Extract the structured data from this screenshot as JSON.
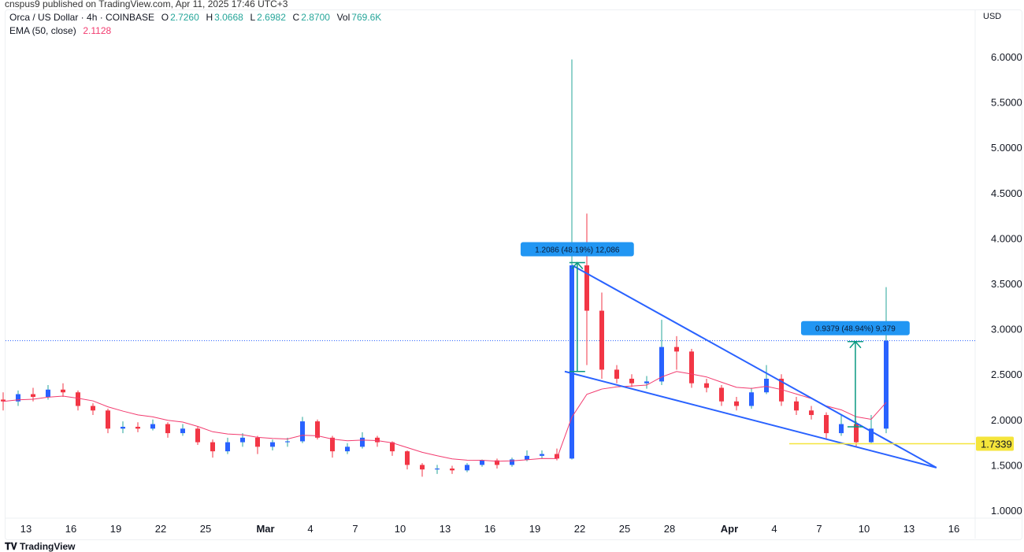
{
  "header": {
    "published": "cnspus9 published on TradingView.com, Apr 11, 2025 17:46 UTC+3",
    "symbol": "Orca / US Dollar · 4h · COINBASE",
    "ohlc": {
      "o_label": "O",
      "o": "2.7260",
      "h_label": "H",
      "h": "3.0668",
      "l_label": "L",
      "l": "2.6982",
      "c_label": "C",
      "c": "2.8700",
      "vol_label": "Vol",
      "vol": "769.6K"
    },
    "ema_label": "EMA (50, close)",
    "ema_value": "2.1128",
    "currency": "USD"
  },
  "footer": {
    "brand": "TradingView"
  },
  "chart_data": {
    "type": "candlestick",
    "colors": {
      "up": "#2962ff",
      "down": "#f23645",
      "wick_up": "#26a69a",
      "ema": "#f23b6f",
      "trendline": "#2962ff",
      "support": "#f5e53b",
      "measure": "#089981",
      "label_bg": "#2196f3"
    },
    "yaxis": {
      "ticks": [
        "1.0000",
        "1.5000",
        "2.0000",
        "2.5000",
        "3.0000",
        "3.5000",
        "4.0000",
        "4.5000",
        "5.0000",
        "5.5000",
        "6.0000"
      ],
      "range": [
        1.0,
        6.0
      ]
    },
    "xaxis": {
      "ticks": [
        {
          "label": "13",
          "date": "2025-02-13"
        },
        {
          "label": "16",
          "date": "2025-02-16"
        },
        {
          "label": "19",
          "date": "2025-02-19"
        },
        {
          "label": "22",
          "date": "2025-02-22"
        },
        {
          "label": "25",
          "date": "2025-02-25"
        },
        {
          "label": "Mar",
          "date": "2025-03-01",
          "bold": true
        },
        {
          "label": "4",
          "date": "2025-03-04"
        },
        {
          "label": "7",
          "date": "2025-03-07"
        },
        {
          "label": "10",
          "date": "2025-03-10"
        },
        {
          "label": "13",
          "date": "2025-03-13"
        },
        {
          "label": "16",
          "date": "2025-03-16"
        },
        {
          "label": "19",
          "date": "2025-03-19"
        },
        {
          "label": "22",
          "date": "2025-03-22"
        },
        {
          "label": "25",
          "date": "2025-03-25"
        },
        {
          "label": "28",
          "date": "2025-03-28"
        },
        {
          "label": "Apr",
          "date": "2025-04-01",
          "bold": true
        },
        {
          "label": "4",
          "date": "2025-04-04"
        },
        {
          "label": "7",
          "date": "2025-04-07"
        },
        {
          "label": "10",
          "date": "2025-04-10"
        },
        {
          "label": "13",
          "date": "2025-04-13"
        },
        {
          "label": "16",
          "date": "2025-04-16"
        }
      ],
      "range": [
        "2025-02-11",
        "2025-04-18"
      ]
    },
    "candles": [
      [
        "2025-02-11",
        2.22,
        2.3,
        2.1,
        2.2
      ],
      [
        "2025-02-12",
        2.2,
        2.32,
        2.15,
        2.28
      ],
      [
        "2025-02-13",
        2.28,
        2.35,
        2.2,
        2.25
      ],
      [
        "2025-02-14",
        2.25,
        2.38,
        2.22,
        2.33
      ],
      [
        "2025-02-15",
        2.33,
        2.4,
        2.25,
        2.3
      ],
      [
        "2025-02-16",
        2.3,
        2.32,
        2.1,
        2.15
      ],
      [
        "2025-02-17",
        2.15,
        2.18,
        2.05,
        2.1
      ],
      [
        "2025-02-18",
        2.1,
        2.12,
        1.85,
        1.9
      ],
      [
        "2025-02-19",
        1.9,
        1.98,
        1.85,
        1.92
      ],
      [
        "2025-02-20",
        1.92,
        1.97,
        1.86,
        1.9
      ],
      [
        "2025-02-21",
        1.9,
        2.0,
        1.88,
        1.95
      ],
      [
        "2025-02-22",
        1.95,
        1.97,
        1.8,
        1.85
      ],
      [
        "2025-02-23",
        1.85,
        1.95,
        1.82,
        1.9
      ],
      [
        "2025-02-24",
        1.9,
        1.92,
        1.72,
        1.75
      ],
      [
        "2025-02-25",
        1.75,
        1.78,
        1.58,
        1.65
      ],
      [
        "2025-02-26",
        1.65,
        1.8,
        1.62,
        1.75
      ],
      [
        "2025-02-27",
        1.75,
        1.85,
        1.7,
        1.8
      ],
      [
        "2025-02-28",
        1.8,
        1.82,
        1.62,
        1.7
      ],
      [
        "2025-03-01",
        1.7,
        1.78,
        1.66,
        1.75
      ],
      [
        "2025-03-02",
        1.75,
        1.8,
        1.7,
        1.76
      ],
      [
        "2025-03-03",
        1.76,
        2.03,
        1.74,
        1.98
      ],
      [
        "2025-03-04",
        1.98,
        2.0,
        1.78,
        1.8
      ],
      [
        "2025-03-05",
        1.8,
        1.82,
        1.58,
        1.65
      ],
      [
        "2025-03-06",
        1.65,
        1.74,
        1.62,
        1.7
      ],
      [
        "2025-03-07",
        1.7,
        1.86,
        1.68,
        1.8
      ],
      [
        "2025-03-08",
        1.8,
        1.82,
        1.7,
        1.75
      ],
      [
        "2025-03-09",
        1.75,
        1.76,
        1.6,
        1.65
      ],
      [
        "2025-03-10",
        1.65,
        1.66,
        1.45,
        1.5
      ],
      [
        "2025-03-11",
        1.5,
        1.52,
        1.37,
        1.45
      ],
      [
        "2025-03-12",
        1.45,
        1.5,
        1.4,
        1.46
      ],
      [
        "2025-03-13",
        1.46,
        1.49,
        1.4,
        1.44
      ],
      [
        "2025-03-14",
        1.44,
        1.52,
        1.42,
        1.5
      ],
      [
        "2025-03-15",
        1.5,
        1.56,
        1.48,
        1.55
      ],
      [
        "2025-03-16",
        1.55,
        1.57,
        1.46,
        1.5
      ],
      [
        "2025-03-17",
        1.5,
        1.58,
        1.48,
        1.56
      ],
      [
        "2025-03-18",
        1.56,
        1.66,
        1.54,
        1.6
      ],
      [
        "2025-03-19",
        1.6,
        1.66,
        1.57,
        1.62
      ],
      [
        "2025-03-20",
        1.62,
        1.68,
        1.55,
        1.57
      ],
      [
        "2025-03-21",
        1.57,
        5.97,
        1.56,
        3.7
      ],
      [
        "2025-03-22",
        3.7,
        4.27,
        2.6,
        3.2
      ],
      [
        "2025-03-23",
        3.2,
        3.4,
        2.45,
        2.55
      ],
      [
        "2025-03-24",
        2.55,
        2.6,
        2.4,
        2.45
      ],
      [
        "2025-03-25",
        2.45,
        2.5,
        2.36,
        2.4
      ],
      [
        "2025-03-26",
        2.4,
        2.48,
        2.34,
        2.42
      ],
      [
        "2025-03-27",
        2.42,
        3.1,
        2.38,
        2.8
      ],
      [
        "2025-03-28",
        2.8,
        2.92,
        2.55,
        2.75
      ],
      [
        "2025-03-29",
        2.75,
        2.78,
        2.35,
        2.4
      ],
      [
        "2025-03-30",
        2.4,
        2.45,
        2.3,
        2.35
      ],
      [
        "2025-03-31",
        2.35,
        2.38,
        2.15,
        2.2
      ],
      [
        "2025-04-01",
        2.2,
        2.25,
        2.1,
        2.15
      ],
      [
        "2025-04-02",
        2.15,
        2.35,
        2.12,
        2.3
      ],
      [
        "2025-04-03",
        2.3,
        2.6,
        2.28,
        2.45
      ],
      [
        "2025-04-04",
        2.45,
        2.5,
        2.15,
        2.2
      ],
      [
        "2025-04-05",
        2.2,
        2.25,
        2.05,
        2.1
      ],
      [
        "2025-04-06",
        2.1,
        2.15,
        2.0,
        2.05
      ],
      [
        "2025-04-07",
        2.05,
        2.08,
        1.78,
        1.85
      ],
      [
        "2025-04-08",
        1.85,
        2.05,
        1.82,
        1.95
      ],
      [
        "2025-04-09",
        1.95,
        1.98,
        1.7,
        1.75
      ],
      [
        "2025-04-10",
        1.75,
        2.05,
        1.74,
        1.9
      ],
      [
        "2025-04-11",
        1.9,
        3.46,
        1.85,
        2.87
      ]
    ],
    "ema_period": 50,
    "current_price": 2.87,
    "support_level": {
      "value": 1.7339,
      "label": "1.7339",
      "from": "2025-04-05"
    },
    "trendlines": [
      {
        "name": "upper",
        "from": [
          "2025-03-21T12:00",
          3.7
        ],
        "to": [
          "2025-04-14T20:00",
          1.47
        ]
      },
      {
        "name": "lower",
        "from": [
          "2025-03-21T00:00",
          2.53
        ],
        "to": [
          "2025-04-14T20:00",
          1.47
        ]
      }
    ],
    "measures": [
      {
        "date": "2025-03-21T20:00",
        "from": 2.53,
        "to": 3.73,
        "label": "1.2086 (48.19%) 12,086"
      },
      {
        "date": "2025-04-09T10:00",
        "from": 1.92,
        "to": 2.86,
        "label": "0.9379 (48.94%) 9,379"
      }
    ]
  }
}
